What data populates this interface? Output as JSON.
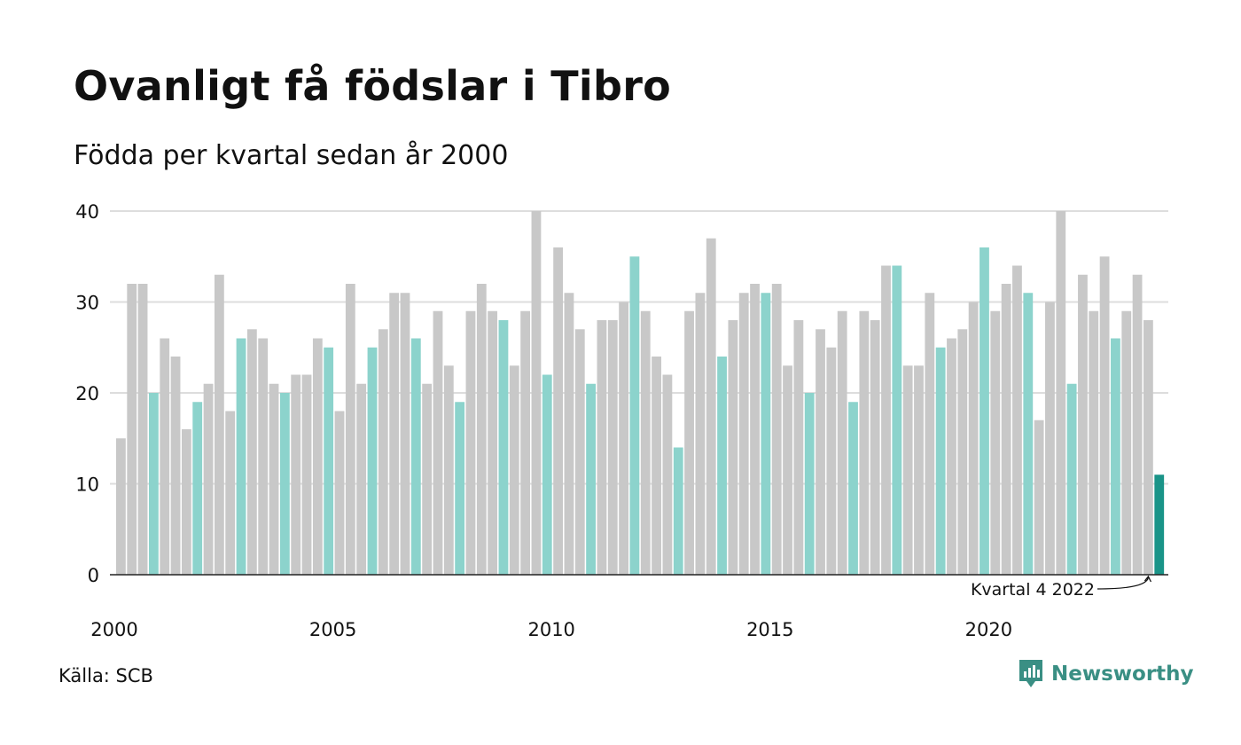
{
  "title": "Ovanligt få födslar i Tibro",
  "subtitle": "Födda per kvartal sedan år 2000",
  "source": "Källa: SCB",
  "brand": {
    "name": "Newsworthy",
    "icon": "newsworthy-logo-icon"
  },
  "colors": {
    "bar_default": "#c8c8c8",
    "bar_q4": "#8cd3cc",
    "bar_latest": "#1a9488",
    "grid": "#dddddd",
    "axis": "#222222",
    "brand": "#3a8f84"
  },
  "chart_data": {
    "type": "bar",
    "x_start_year": 2000,
    "x_tick_labels": [
      "2000",
      "2005",
      "2010",
      "2015",
      "2020"
    ],
    "y_ticks": [
      0,
      10,
      20,
      30,
      40
    ],
    "ylim": [
      0,
      40
    ],
    "grid": true,
    "highlight_rule": "Kvartal 4 bars highlighted; latest quarter in dark teal",
    "annotation": {
      "text": "Kvartal 4 2022"
    },
    "values": [
      15,
      32,
      32,
      20,
      26,
      24,
      16,
      19,
      21,
      33,
      18,
      26,
      27,
      26,
      21,
      20,
      22,
      22,
      26,
      25,
      18,
      32,
      21,
      25,
      27,
      31,
      31,
      26,
      21,
      29,
      23,
      19,
      29,
      32,
      29,
      28,
      23,
      29,
      40,
      22,
      36,
      31,
      27,
      21,
      28,
      28,
      30,
      35,
      29,
      24,
      22,
      14,
      29,
      31,
      37,
      24,
      28,
      31,
      32,
      31,
      32,
      23,
      28,
      20,
      27,
      25,
      29,
      19,
      29,
      28,
      34,
      34,
      23,
      23,
      31,
      25,
      26,
      27,
      30,
      36,
      29,
      32,
      34,
      31,
      17,
      30,
      40,
      21,
      33,
      29,
      35,
      26,
      29,
      33,
      28,
      11
    ]
  }
}
